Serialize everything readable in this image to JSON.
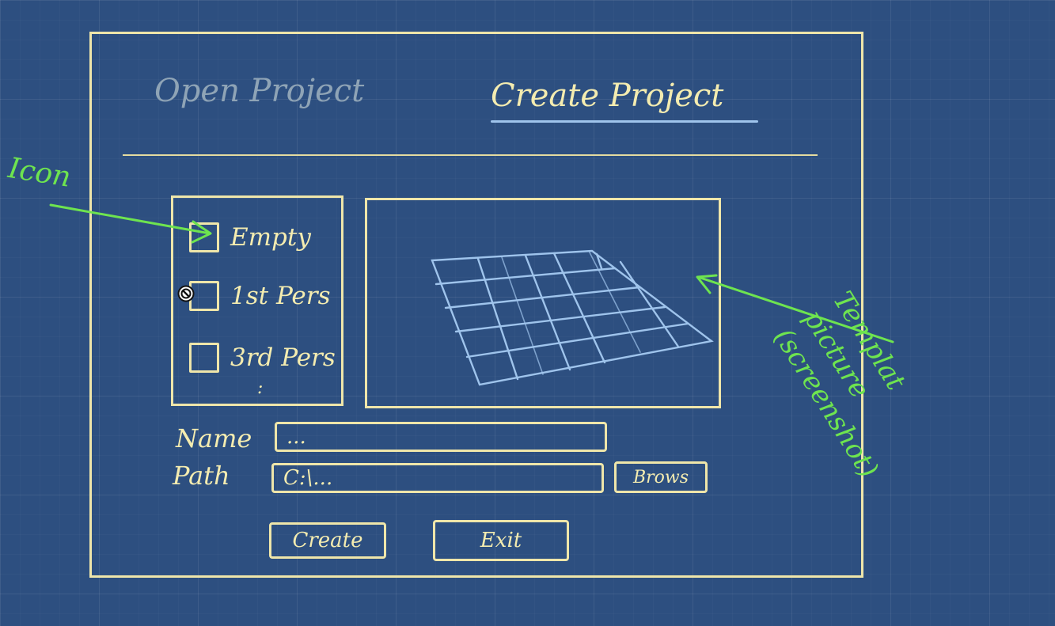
{
  "tabs": {
    "open_project": "Open Project",
    "create_project": "Create Project"
  },
  "templates": {
    "items": [
      "Empty",
      "1st Pers",
      "3rd Pers"
    ],
    "more": ":"
  },
  "form": {
    "name_label": "Name",
    "name_value": "...",
    "path_label": "Path",
    "path_value": "C:\\...",
    "browse_label": "Brows"
  },
  "buttons": {
    "create_label": "Create",
    "exit_label": "Exit"
  },
  "annotations": {
    "icon": "Icon",
    "template_line1": "Templat",
    "template_line2": "picture",
    "template_line3": "(screenshot)"
  },
  "colors": {
    "background": "#2d4f80",
    "chalk": "#f4ecb0",
    "annotation": "#6ee44f",
    "tab_underline": "#9fc4ec",
    "inactive_tab": "#8fa4b6"
  }
}
